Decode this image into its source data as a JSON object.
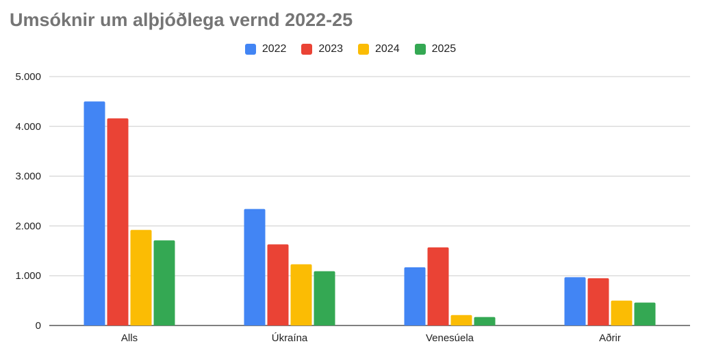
{
  "title": "Umsóknir um alþjóðlega vernd 2022-25",
  "chart_data": {
    "type": "bar",
    "categories": [
      "Alls",
      "Úkraína",
      "Venesúela",
      "Aðrir"
    ],
    "series": [
      {
        "name": "2022",
        "color": "#4285F4",
        "values": [
          4500,
          2340,
          1170,
          970
        ]
      },
      {
        "name": "2023",
        "color": "#EA4335",
        "values": [
          4160,
          1630,
          1570,
          950
        ]
      },
      {
        "name": "2024",
        "color": "#FBBC04",
        "values": [
          1920,
          1230,
          210,
          500
        ]
      },
      {
        "name": "2025",
        "color": "#34A853",
        "values": [
          1710,
          1090,
          170,
          460
        ]
      }
    ],
    "ylim": [
      0,
      5000
    ],
    "yticks": [
      0,
      1000,
      2000,
      3000,
      4000,
      5000
    ],
    "ytick_labels": [
      "0",
      "1.000",
      "2.000",
      "3.000",
      "4.000",
      "5.000"
    ],
    "grid": true,
    "legend_position": "top-center"
  }
}
